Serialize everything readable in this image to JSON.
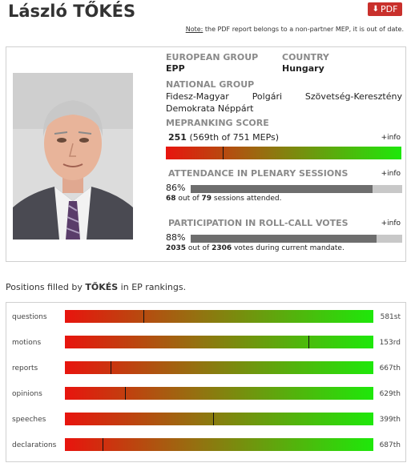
{
  "header": {
    "name": "László TŐKÉS",
    "pdf_label": "PDF",
    "note_label": "Note:",
    "note_text": " the PDF report belongs to a non-partner MEP, it is out of date."
  },
  "profile": {
    "european_group_label": "EUROPEAN GROUP",
    "european_group": "EPP",
    "country_label": "COUNTRY",
    "country": "Hungary",
    "national_group_label": "NATIONAL GROUP",
    "national_group": "Fidesz-Magyar Polgári Szövetség-Keresztény Demokrata Néppárt",
    "score_label": "MEPRANKING SCORE",
    "score_value": "251",
    "score_detail": "(569th of 751 MEPs)",
    "score_rank": 569,
    "score_total": 751,
    "info_label": "+info",
    "attendance_label": "ATTENDANCE IN PLENARY SESSIONS",
    "attendance_percent_text": "86%",
    "attendance_fraction": 0.86,
    "attendance_attended": "68",
    "attendance_mid": " out of ",
    "attendance_total": "79",
    "attendance_suffix": " sessions attended.",
    "votes_label": "PARTICIPATION IN ROLL-CALL VOTES",
    "votes_percent_text": "88%",
    "votes_fraction": 0.88,
    "votes_cast": "2035",
    "votes_mid": " out of ",
    "votes_total": "2306",
    "votes_suffix": " votes during current mandate."
  },
  "positions": {
    "title_prefix": "Positions filled by ",
    "title_name": "TŐKÉS",
    "title_suffix": " in EP rankings.",
    "rows": [
      {
        "category": "questions",
        "rank": "581st",
        "marker": 0.255
      },
      {
        "category": "motions",
        "rank": "153rd",
        "marker": 0.79
      },
      {
        "category": "reports",
        "rank": "667th",
        "marker": 0.147
      },
      {
        "category": "opinions",
        "rank": "629th",
        "marker": 0.194
      },
      {
        "category": "speeches",
        "rank": "399th",
        "marker": 0.481
      },
      {
        "category": "declarations",
        "rank": "687th",
        "marker": 0.122
      }
    ]
  },
  "colors": {
    "pdf_button": "#c9302c",
    "bar_low": "#e8140e",
    "bar_high": "#1ee80a",
    "attendance_fill": "#6e6e6e",
    "attendance_track": "#c8c8c8"
  }
}
